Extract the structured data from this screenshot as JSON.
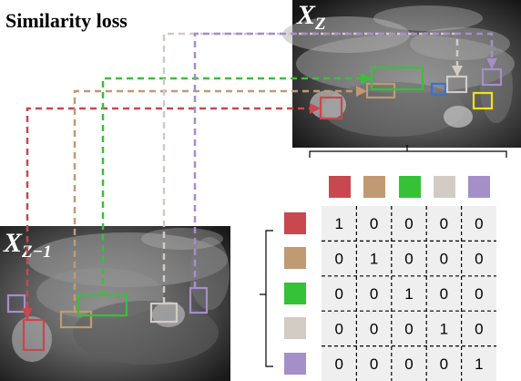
{
  "title": "Similarity loss",
  "images": {
    "top": {
      "label": "X",
      "subscript": "Z"
    },
    "bottom": {
      "label": "X",
      "subscript": "Z−1"
    }
  },
  "colors": [
    "#c9474e",
    "#c09a73",
    "#36c236",
    "#d2cbc4",
    "#a48fc8"
  ],
  "extra_box_colors": {
    "blue": "#3a6fd0",
    "yellow": "#f2e21a"
  },
  "matrix": [
    [
      1,
      0,
      0,
      0,
      0
    ],
    [
      0,
      1,
      0,
      0,
      0
    ],
    [
      0,
      0,
      1,
      0,
      0
    ],
    [
      0,
      0,
      0,
      1,
      0
    ],
    [
      0,
      0,
      0,
      0,
      1
    ]
  ]
}
